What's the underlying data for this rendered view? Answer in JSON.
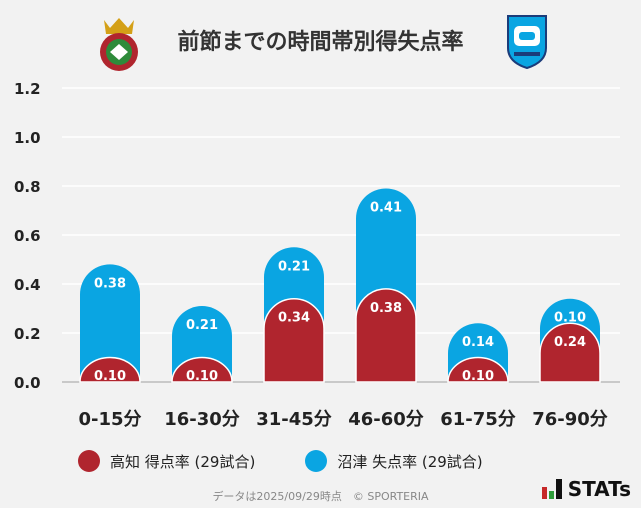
{
  "title": "前節までの時間帯別得失点率",
  "chart_data": {
    "type": "bar",
    "stacked": true,
    "title": "前節までの時間帯別得失点率",
    "categories": [
      "0-15分",
      "16-30分",
      "31-45分",
      "46-60分",
      "61-75分",
      "76-90分"
    ],
    "series": [
      {
        "name": "高知 得点率 (29試合)",
        "color": "#b0252e",
        "values": [
          0.1,
          0.1,
          0.34,
          0.38,
          0.1,
          0.24
        ]
      },
      {
        "name": "沼津 失点率 (29試合)",
        "color": "#0aa5e2",
        "values": [
          0.38,
          0.21,
          0.21,
          0.41,
          0.14,
          0.1
        ]
      }
    ],
    "ylim": [
      0,
      1.2
    ],
    "yticks": [
      "0.0",
      "0.2",
      "0.4",
      "0.6",
      "0.8",
      "1.0",
      "1.2"
    ],
    "grid": true,
    "legend": "bottom"
  },
  "footer": "データは2025/09/29時点　© SPORTERIA",
  "brand": "STATs"
}
